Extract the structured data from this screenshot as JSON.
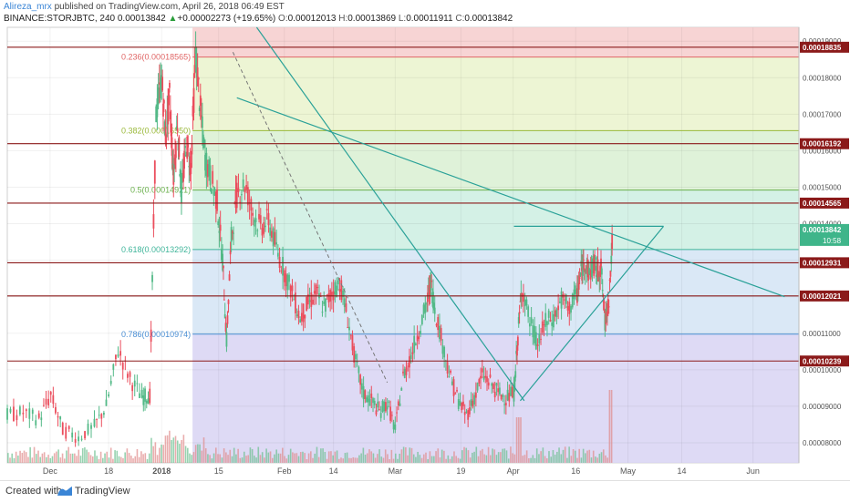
{
  "header": {
    "author": "Alireza_mrx",
    "published": "published on TradingView.com, April 26, 2018 06:49 EST",
    "symbol": "BINANCE:STORJBTC, 240",
    "last": "0.00013842",
    "change": "+0.00002273 (+19.65%)",
    "o_label": "O:",
    "o_value": "0.00012013",
    "h_label": "H:",
    "h_value": "0.00013869",
    "l_label": "L:",
    "l_value": "0.00011911",
    "c_label": "C:",
    "c_value": "0.00013842"
  },
  "footer": {
    "created_with": "Created with",
    "brand": "TradingView"
  },
  "chart_data": {
    "type": "candlestick",
    "ylim": [
      7.45e-05,
      0.0001938
    ],
    "y_ticks": [
      {
        "value": 8e-05,
        "label": "0.00008000"
      },
      {
        "value": 9e-05,
        "label": "0.00009000"
      },
      {
        "value": 0.0001,
        "label": "0.00010000"
      },
      {
        "value": 0.00011,
        "label": "0.00011000"
      },
      {
        "value": 0.00012,
        "label": "0.00012000"
      },
      {
        "value": 0.00013,
        "label": "0.00013000"
      },
      {
        "value": 0.00014,
        "label": "0.00014000"
      },
      {
        "value": 0.00015,
        "label": "0.00015000"
      },
      {
        "value": 0.00016,
        "label": "0.00016000"
      },
      {
        "value": 0.00017,
        "label": "0.00017000"
      },
      {
        "value": 0.00018,
        "label": "0.00018000"
      },
      {
        "value": 0.00019,
        "label": "0.00019000"
      }
    ],
    "x_ticks": [
      {
        "label": "Dec",
        "x": 0.054
      },
      {
        "label": "18",
        "x": 0.128
      },
      {
        "label": "2018",
        "x": 0.195
      },
      {
        "label": "15",
        "x": 0.267
      },
      {
        "label": "Feb",
        "x": 0.35
      },
      {
        "label": "14",
        "x": 0.412
      },
      {
        "label": "Mar",
        "x": 0.49
      },
      {
        "label": "19",
        "x": 0.573
      },
      {
        "label": "Apr",
        "x": 0.639
      },
      {
        "label": "16",
        "x": 0.718
      },
      {
        "label": "May",
        "x": 0.784
      },
      {
        "label": "14",
        "x": 0.852
      },
      {
        "label": "Jun",
        "x": 0.942
      }
    ],
    "fib_levels": [
      {
        "ratio": "0.236",
        "label": "0.236(0.00018565)",
        "value": 0.00018565,
        "color": "#e06666",
        "band": "#f6cccc"
      },
      {
        "ratio": "0.382",
        "label": "0.382(0.00016550)",
        "value": 0.0001655,
        "color": "#9ab93a",
        "band": "#eaf3cd"
      },
      {
        "ratio": "0.5",
        "label": "0.5(0.00014921)",
        "value": 0.00014921,
        "color": "#6ab04c",
        "band": "#d9f0d2"
      },
      {
        "ratio": "0.618",
        "label": "0.618(0.00013292)",
        "value": 0.00013292,
        "color": "#3fb59a",
        "band": "#cdeee2"
      },
      {
        "ratio": "0.786",
        "label": "0.786(0.00010974)",
        "value": 0.00010974,
        "color": "#4b8fd4",
        "band": "#d3e4f4"
      },
      {
        "ratio": "1",
        "label": "",
        "value": 7.45e-05,
        "color": "#7b6fd0",
        "band": "#d8d3f3"
      }
    ],
    "fib_top": 0.0001938,
    "horizontal_levels": [
      {
        "value": 0.00018835,
        "label": "0.00018835"
      },
      {
        "value": 0.00016192,
        "label": "0.00016192"
      },
      {
        "value": 0.00014565,
        "label": "0.00014565"
      },
      {
        "value": 0.00012931,
        "label": "0.00012931"
      },
      {
        "value": 0.00012021,
        "label": "0.00012021"
      },
      {
        "value": 0.00010239,
        "label": "0.00010239"
      }
    ],
    "last_price": {
      "value": 0.00013842,
      "label": "0.00013842",
      "countdown": "10:58"
    },
    "trendlines": [
      {
        "x1": 0.315,
        "y1": 0.0001938,
        "x2": 0.653,
        "y2": 9.15e-05
      },
      {
        "x1": 0.29,
        "y1": 0.0001745,
        "x2": 0.982,
        "y2": 0.00012
      },
      {
        "x1": 0.648,
        "y1": 9.15e-05,
        "x2": 0.829,
        "y2": 0.0001393
      },
      {
        "x1": 0.64,
        "y1": 0.0001393,
        "x2": 0.829,
        "y2": 0.0001393
      }
    ],
    "dashed_line": {
      "x1": 0.285,
      "y1": 0.000187,
      "x2": 0.48,
      "y2": 9.65e-05
    },
    "fib_region": {
      "x_start": 0.234,
      "x_end": 1.0
    },
    "price_path": [
      [
        0.0,
        8.75e-05
      ],
      [
        0.02,
        8.82e-05
      ],
      [
        0.04,
        8.65e-05
      ],
      [
        0.055,
        9.3e-05
      ],
      [
        0.07,
        8.35e-05
      ],
      [
        0.09,
        8.15e-05
      ],
      [
        0.11,
        8.45e-05
      ],
      [
        0.125,
        9e-05
      ],
      [
        0.14,
        0.0001055
      ],
      [
        0.155,
        9.75e-05
      ],
      [
        0.17,
        9.25e-05
      ],
      [
        0.18,
        9.3e-05
      ],
      [
        0.188,
        0.00017
      ],
      [
        0.195,
        0.00018
      ],
      [
        0.2,
        0.000164
      ],
      [
        0.205,
        0.000175
      ],
      [
        0.21,
        0.000153
      ],
      [
        0.215,
        0.000168
      ],
      [
        0.22,
        0.000148
      ],
      [
        0.226,
        0.000162
      ],
      [
        0.232,
        0.000156
      ],
      [
        0.238,
        0.000187
      ],
      [
        0.244,
        0.000171
      ],
      [
        0.25,
        0.000158
      ],
      [
        0.258,
        0.000152
      ],
      [
        0.265,
        0.000146
      ],
      [
        0.272,
        0.00013
      ],
      [
        0.277,
        0.000108
      ],
      [
        0.283,
        0.000136
      ],
      [
        0.29,
        0.000148
      ],
      [
        0.3,
        0.000151
      ],
      [
        0.31,
        0.000143
      ],
      [
        0.32,
        0.000139
      ],
      [
        0.33,
        0.000141
      ],
      [
        0.34,
        0.000133
      ],
      [
        0.35,
        0.000127
      ],
      [
        0.36,
        0.000121
      ],
      [
        0.37,
        0.000114
      ],
      [
        0.38,
        0.000118
      ],
      [
        0.39,
        0.000121
      ],
      [
        0.4,
        0.000117
      ],
      [
        0.41,
        0.000121
      ],
      [
        0.42,
        0.000124
      ],
      [
        0.43,
        0.000114
      ],
      [
        0.44,
        0.000102
      ],
      [
        0.45,
        9.35e-05
      ],
      [
        0.46,
        9.15e-05
      ],
      [
        0.47,
        8.85e-05
      ],
      [
        0.48,
        9.1e-05
      ],
      [
        0.49,
        8.35e-05
      ],
      [
        0.5,
        9.8e-05
      ],
      [
        0.51,
        0.000104
      ],
      [
        0.52,
        0.000111
      ],
      [
        0.53,
        0.000118
      ],
      [
        0.535,
        0.000124
      ],
      [
        0.54,
        0.000117
      ],
      [
        0.55,
        0.000107
      ],
      [
        0.56,
        9.75e-05
      ],
      [
        0.57,
        9.15e-05
      ],
      [
        0.58,
        8.75e-05
      ],
      [
        0.59,
        9.25e-05
      ],
      [
        0.6,
        9.85e-05
      ],
      [
        0.61,
        9.65e-05
      ],
      [
        0.62,
        9.35e-05
      ],
      [
        0.63,
        9.25e-05
      ],
      [
        0.64,
        9.35e-05
      ],
      [
        0.645,
        0.000109
      ],
      [
        0.65,
        0.000123
      ],
      [
        0.66,
        0.000113
      ],
      [
        0.67,
        0.000107
      ],
      [
        0.68,
        0.000113
      ],
      [
        0.69,
        0.000114
      ],
      [
        0.7,
        0.000119
      ],
      [
        0.71,
        0.000117
      ],
      [
        0.72,
        0.000121
      ],
      [
        0.725,
        0.000127
      ],
      [
        0.73,
        0.00013
      ],
      [
        0.735,
        0.000126
      ],
      [
        0.74,
        0.000129
      ],
      [
        0.745,
        0.000127
      ],
      [
        0.75,
        0.000128
      ],
      [
        0.755,
        0.000113
      ],
      [
        0.76,
        0.00012
      ],
      [
        0.765,
        0.000138
      ]
    ]
  }
}
